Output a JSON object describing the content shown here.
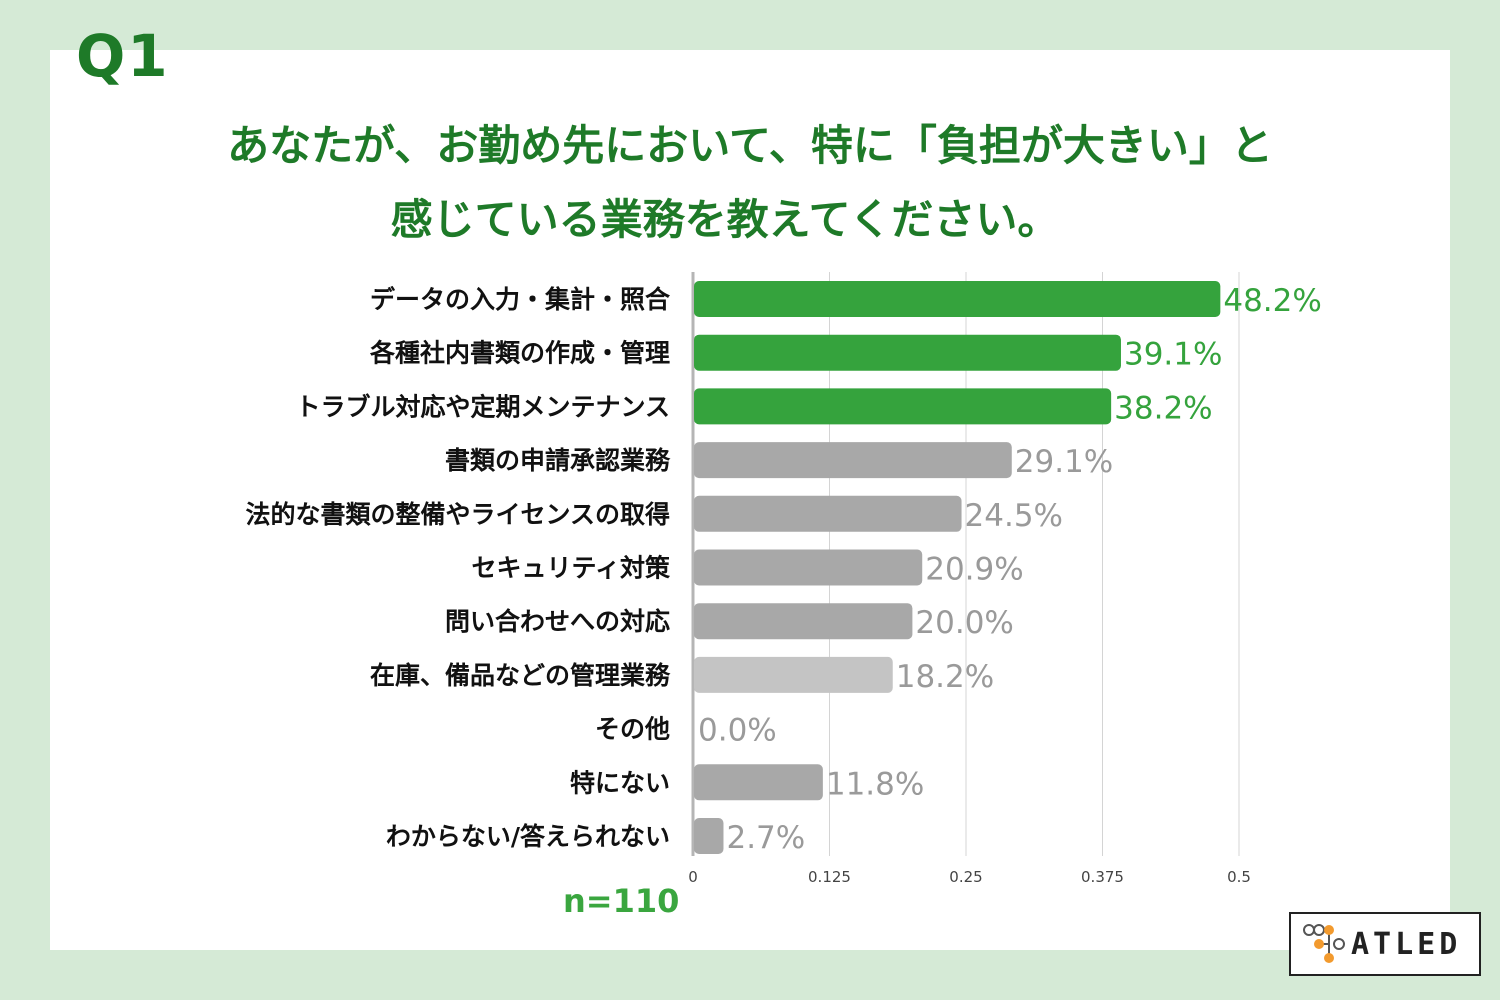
{
  "header": {
    "question_id": "Q1",
    "title_line1": "あなたが、お勤め先において、特に「負担が大きい」と",
    "title_line2": "感じている業務を教えてください。"
  },
  "sample_size": "n=110",
  "logo": {
    "text": "ATLED"
  },
  "colors": {
    "background": "#d5ead6",
    "accent": "#1e7a28",
    "highlight_bar": "#35a33d",
    "gray_bar": "#a8a8a8"
  },
  "chart_data": {
    "type": "bar",
    "orientation": "horizontal",
    "categories": [
      "データの入力・集計・照合",
      "各種社内書類の作成・管理",
      "トラブル対応や定期メンテナンス",
      "書類の申請承認業務",
      "法的な書類の整備やライセンスの取得",
      "セキュリティ対策",
      "問い合わせへの対応",
      "在庫、備品などの管理業務",
      "その他",
      "特にない",
      "わからない/答えられない"
    ],
    "values": [
      0.482,
      0.391,
      0.382,
      0.291,
      0.245,
      0.209,
      0.2,
      0.182,
      0.0,
      0.118,
      0.027
    ],
    "labels": [
      "48.2%",
      "39.1%",
      "38.2%",
      "29.1%",
      "24.5%",
      "20.9%",
      "20.0%",
      "18.2%",
      "0.0%",
      "11.8%",
      "2.7%"
    ],
    "highlighted": [
      true,
      true,
      true,
      false,
      false,
      false,
      false,
      false,
      false,
      false,
      false
    ],
    "xlim": [
      0,
      0.5
    ],
    "xticks": [
      "0",
      "0.125",
      "0.25",
      "0.375",
      "0.5"
    ],
    "tick_values": [
      0,
      0.125,
      0.25,
      0.375,
      0.5
    ],
    "grid": true
  }
}
